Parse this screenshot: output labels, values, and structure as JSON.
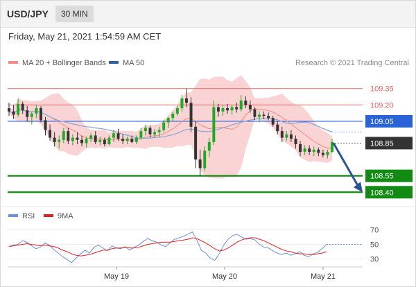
{
  "header": {
    "symbol": "USD/JPY",
    "timeframe": "30 MIN",
    "datetime": "Friday, May 21, 2021 1:54:59 AM CET",
    "source": "Research © 2021 Trading Central"
  },
  "legend": {
    "ma20_label": "MA 20 + Bollinger Bands",
    "ma20_color": "#f28b82",
    "ma50_label": "MA 50",
    "ma50_color": "#2e5f9e"
  },
  "rsi_legend": {
    "rsi_label": "RSI",
    "rsi_color": "#6c8fe0",
    "ma9_label": "9MA",
    "ma9_color": "#e02020"
  },
  "chart_data": [
    {
      "type": "candlestick",
      "name": "price",
      "x_tick_labels": [
        "May 19",
        "May 20",
        "May 21"
      ],
      "ylim": [
        108.3,
        109.45
      ],
      "candles": [
        [
          109.17,
          109.22,
          109.1,
          109.14
        ],
        [
          109.14,
          109.2,
          109.07,
          109.11
        ],
        [
          109.11,
          109.26,
          109.09,
          109.21
        ],
        [
          109.21,
          109.23,
          109.12,
          109.15
        ],
        [
          109.15,
          109.19,
          109.05,
          109.09
        ],
        [
          109.09,
          109.14,
          109.02,
          109.12
        ],
        [
          109.12,
          109.2,
          109.08,
          109.17
        ],
        [
          109.17,
          109.19,
          109.04,
          109.06
        ],
        [
          109.06,
          109.09,
          108.92,
          108.97
        ],
        [
          108.97,
          109.02,
          108.87,
          108.9
        ],
        [
          108.9,
          108.95,
          108.82,
          108.86
        ],
        [
          108.86,
          108.92,
          108.8,
          108.88
        ],
        [
          108.88,
          108.99,
          108.85,
          108.96
        ],
        [
          108.96,
          108.99,
          108.84,
          108.87
        ],
        [
          108.87,
          108.93,
          108.83,
          108.9
        ],
        [
          108.9,
          108.95,
          108.84,
          108.88
        ],
        [
          108.88,
          108.92,
          108.82,
          108.85
        ],
        [
          108.85,
          108.91,
          108.81,
          108.89
        ],
        [
          108.89,
          108.94,
          108.86,
          108.92
        ],
        [
          108.92,
          108.96,
          108.84,
          108.86
        ],
        [
          108.86,
          108.91,
          108.83,
          108.88
        ],
        [
          108.88,
          108.9,
          108.82,
          108.84
        ],
        [
          108.84,
          108.92,
          108.83,
          108.9
        ],
        [
          108.9,
          108.97,
          108.86,
          108.94
        ],
        [
          108.94,
          108.98,
          108.87,
          108.89
        ],
        [
          108.89,
          108.93,
          108.84,
          108.87
        ],
        [
          108.87,
          108.91,
          108.84,
          108.89
        ],
        [
          108.89,
          108.92,
          108.85,
          108.86
        ],
        [
          108.86,
          108.92,
          108.84,
          108.9
        ],
        [
          108.9,
          108.99,
          108.88,
          108.96
        ],
        [
          108.96,
          109.02,
          108.92,
          108.99
        ],
        [
          108.99,
          109.01,
          108.9,
          108.93
        ],
        [
          108.93,
          108.98,
          108.9,
          108.95
        ],
        [
          108.95,
          109.0,
          108.91,
          108.97
        ],
        [
          108.97,
          109.06,
          108.95,
          109.04
        ],
        [
          109.04,
          109.09,
          108.99,
          109.08
        ],
        [
          109.08,
          109.14,
          109.05,
          109.12
        ],
        [
          109.12,
          109.19,
          109.1,
          109.17
        ],
        [
          109.17,
          109.29,
          109.14,
          109.26
        ],
        [
          109.26,
          109.35,
          109.18,
          109.22
        ],
        [
          109.22,
          109.27,
          108.95,
          109.0
        ],
        [
          109.0,
          109.05,
          108.62,
          108.7
        ],
        [
          108.7,
          108.79,
          108.55,
          108.62
        ],
        [
          108.62,
          108.82,
          108.59,
          108.78
        ],
        [
          108.78,
          108.9,
          108.72,
          108.86
        ],
        [
          108.86,
          109.24,
          108.83,
          109.18
        ],
        [
          109.18,
          109.21,
          109.09,
          109.14
        ],
        [
          109.14,
          109.2,
          109.1,
          109.17
        ],
        [
          109.17,
          109.21,
          109.12,
          109.15
        ],
        [
          109.15,
          109.2,
          109.11,
          109.18
        ],
        [
          109.18,
          109.22,
          109.13,
          109.16
        ],
        [
          109.16,
          109.29,
          109.14,
          109.24
        ],
        [
          109.24,
          109.28,
          109.17,
          109.2
        ],
        [
          109.2,
          109.24,
          109.13,
          109.16
        ],
        [
          109.16,
          109.18,
          109.06,
          109.09
        ],
        [
          109.09,
          109.14,
          109.04,
          109.11
        ],
        [
          109.11,
          109.14,
          109.07,
          109.1
        ],
        [
          109.1,
          109.13,
          109.06,
          109.08
        ],
        [
          109.08,
          109.1,
          109.0,
          109.02
        ],
        [
          109.02,
          109.05,
          108.93,
          108.96
        ],
        [
          108.96,
          109.0,
          108.86,
          108.9
        ],
        [
          108.9,
          108.96,
          108.87,
          108.93
        ],
        [
          108.93,
          108.97,
          108.86,
          108.89
        ],
        [
          108.89,
          108.92,
          108.8,
          108.84
        ],
        [
          108.84,
          108.87,
          108.73,
          108.77
        ],
        [
          108.77,
          108.83,
          108.74,
          108.8
        ],
        [
          108.8,
          108.83,
          108.74,
          108.77
        ],
        [
          108.77,
          108.82,
          108.73,
          108.79
        ],
        [
          108.79,
          108.81,
          108.73,
          108.76
        ],
        [
          108.76,
          108.79,
          108.72,
          108.74
        ],
        [
          108.74,
          108.79,
          108.71,
          108.77
        ],
        [
          108.77,
          108.89,
          108.76,
          108.86
        ]
      ],
      "levels": [
        {
          "value": 109.35,
          "label": "109.35",
          "color": "#e86060",
          "style": "thin",
          "tag": "text"
        },
        {
          "value": 109.2,
          "label": "109.20",
          "color": "#e86060",
          "style": "thin",
          "tag": "text"
        },
        {
          "value": 109.05,
          "label": "109.05",
          "color": "#2a62d8",
          "style": "line",
          "tag": "box"
        },
        {
          "value": 108.85,
          "label": "108.85",
          "color": "#333333",
          "style": "none",
          "tag": "box"
        },
        {
          "value": 108.55,
          "label": "108.55",
          "color": "#138a13",
          "style": "thick",
          "tag": "box"
        },
        {
          "value": 108.4,
          "label": "108.40",
          "color": "#138a13",
          "style": "thick",
          "tag": "box"
        }
      ],
      "forecast_arrow": {
        "from": 108.85,
        "to": 108.4,
        "color": "#2a5298"
      },
      "colors": {
        "up": "#26a626",
        "down": "#333333",
        "bands": "#f8c6c6",
        "ma20": "#f28b82",
        "ma50": "#8da7d8"
      }
    },
    {
      "type": "line",
      "name": "RSI",
      "x_tick_labels": [
        "May 19",
        "May 20",
        "May 21"
      ],
      "ylim": [
        20,
        80
      ],
      "y_ticks": [
        70,
        50,
        30
      ],
      "series": [
        {
          "name": "RSI",
          "values": [
            47,
            49,
            50,
            55,
            53,
            48,
            44,
            46,
            52,
            49,
            43,
            38,
            33,
            29,
            25,
            31,
            37,
            42,
            38,
            46,
            49,
            45,
            41,
            48,
            45,
            44,
            47,
            42,
            46,
            49,
            54,
            58,
            55,
            53,
            49,
            47,
            52,
            57,
            59,
            61,
            64,
            67,
            56,
            42,
            38,
            31,
            28,
            37,
            49,
            57,
            62,
            64,
            60,
            57,
            58,
            56,
            50,
            46,
            45,
            41,
            38,
            36,
            38,
            35,
            37,
            40,
            35,
            33,
            37,
            39,
            44,
            50
          ]
        },
        {
          "name": "9MA",
          "values": [
            47,
            48,
            49,
            50,
            51,
            50,
            49,
            48,
            49,
            48,
            47,
            45,
            42,
            40,
            37,
            35,
            34,
            35,
            36,
            38,
            40,
            42,
            42,
            44,
            45,
            45,
            46,
            45,
            45,
            46,
            48,
            50,
            51,
            52,
            53,
            53,
            53,
            54,
            55,
            56,
            57,
            59,
            58,
            55,
            52,
            48,
            44,
            41,
            42,
            45,
            49,
            53,
            56,
            58,
            59,
            59,
            57,
            55,
            52,
            49,
            46,
            43,
            41,
            40,
            38,
            37,
            37,
            36,
            36,
            37,
            38,
            40
          ]
        }
      ],
      "dotted_extension": 50
    }
  ]
}
